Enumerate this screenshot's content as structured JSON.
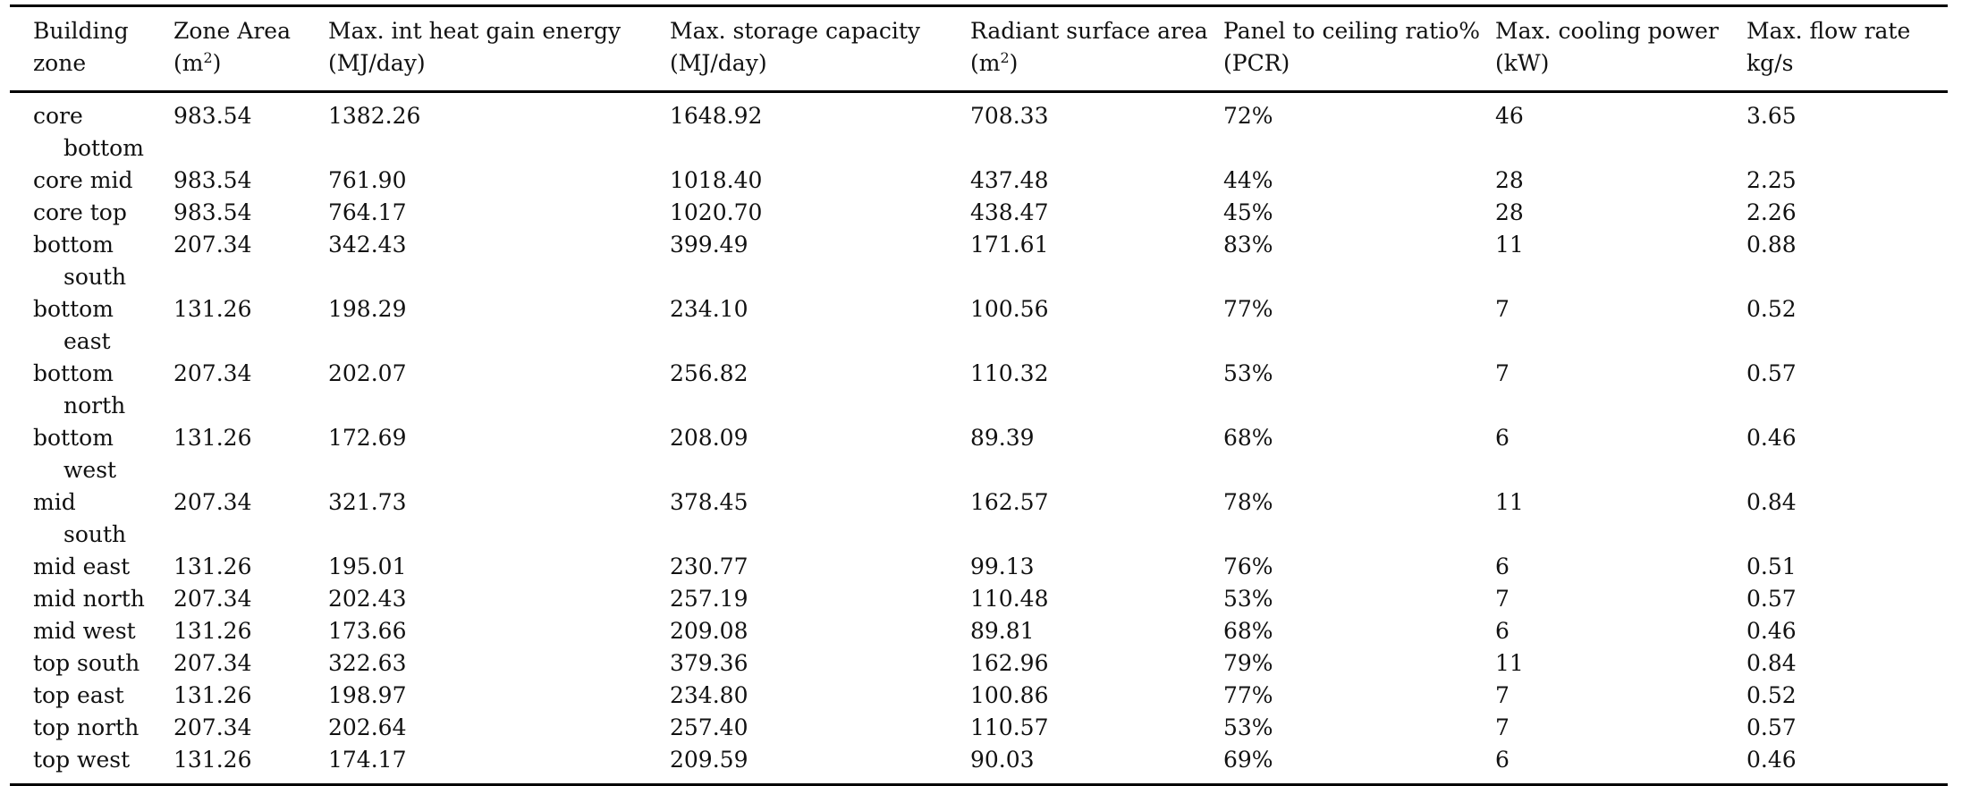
{
  "table": {
    "columns": [
      {
        "line1": "Building",
        "line2": "zone",
        "unit_sup": ""
      },
      {
        "line1": "Zone Area",
        "line2": "(m",
        "unit_sup": "2",
        "line2_end": ")"
      },
      {
        "line1": "Max. int heat gain energy",
        "line2": "(MJ/day)",
        "unit_sup": ""
      },
      {
        "line1": "Max. storage capacity",
        "line2": "(MJ/day)",
        "unit_sup": ""
      },
      {
        "line1": "Radiant surface area",
        "line2": "(m",
        "unit_sup": "2",
        "line2_end": ")"
      },
      {
        "line1": "Panel to ceiling ratio%",
        "line2": "(PCR)",
        "unit_sup": ""
      },
      {
        "line1": "Max. cooling power",
        "line2": "(kW)",
        "unit_sup": ""
      },
      {
        "line1": "Max. flow rate",
        "line2": "kg/s",
        "unit_sup": ""
      }
    ],
    "rows": [
      {
        "zone": "core bottom",
        "area": "983.54",
        "heat_gain": "1382.26",
        "storage": "1648.92",
        "radiant": "708.33",
        "pcr": "72%",
        "cooling": "46",
        "flow": "3.65"
      },
      {
        "zone": "core mid",
        "area": "983.54",
        "heat_gain": "761.90",
        "storage": "1018.40",
        "radiant": "437.48",
        "pcr": "44%",
        "cooling": "28",
        "flow": "2.25"
      },
      {
        "zone": "core top",
        "area": "983.54",
        "heat_gain": "764.17",
        "storage": "1020.70",
        "radiant": "438.47",
        "pcr": "45%",
        "cooling": "28",
        "flow": "2.26"
      },
      {
        "zone": "bottom south",
        "area": "207.34",
        "heat_gain": "342.43",
        "storage": "399.49",
        "radiant": "171.61",
        "pcr": "83%",
        "cooling": "11",
        "flow": "0.88"
      },
      {
        "zone": "bottom east",
        "area": "131.26",
        "heat_gain": "198.29",
        "storage": "234.10",
        "radiant": "100.56",
        "pcr": "77%",
        "cooling": "7",
        "flow": "0.52"
      },
      {
        "zone": "bottom north",
        "area": "207.34",
        "heat_gain": "202.07",
        "storage": "256.82",
        "radiant": "110.32",
        "pcr": "53%",
        "cooling": "7",
        "flow": "0.57"
      },
      {
        "zone": "bottom west",
        "area": "131.26",
        "heat_gain": "172.69",
        "storage": "208.09",
        "radiant": "89.39",
        "pcr": "68%",
        "cooling": "6",
        "flow": "0.46"
      },
      {
        "zone": "mid south",
        "area": "207.34",
        "heat_gain": "321.73",
        "storage": "378.45",
        "radiant": "162.57",
        "pcr": "78%",
        "cooling": "11",
        "flow": "0.84"
      },
      {
        "zone": "mid east",
        "area": "131.26",
        "heat_gain": "195.01",
        "storage": "230.77",
        "radiant": "99.13",
        "pcr": "76%",
        "cooling": "6",
        "flow": "0.51"
      },
      {
        "zone": "mid north",
        "area": "207.34",
        "heat_gain": "202.43",
        "storage": "257.19",
        "radiant": "110.48",
        "pcr": "53%",
        "cooling": "7",
        "flow": "0.57"
      },
      {
        "zone": "mid west",
        "area": "131.26",
        "heat_gain": "173.66",
        "storage": "209.08",
        "radiant": "89.81",
        "pcr": "68%",
        "cooling": "6",
        "flow": "0.46"
      },
      {
        "zone": "top south",
        "area": "207.34",
        "heat_gain": "322.63",
        "storage": "379.36",
        "radiant": "162.96",
        "pcr": "79%",
        "cooling": "11",
        "flow": "0.84"
      },
      {
        "zone": "top east",
        "area": "131.26",
        "heat_gain": "198.97",
        "storage": "234.80",
        "radiant": "100.86",
        "pcr": "77%",
        "cooling": "7",
        "flow": "0.52"
      },
      {
        "zone": "top north",
        "area": "207.34",
        "heat_gain": "202.64",
        "storage": "257.40",
        "radiant": "110.57",
        "pcr": "53%",
        "cooling": "7",
        "flow": "0.57"
      },
      {
        "zone": "top west",
        "area": "131.26",
        "heat_gain": "174.17",
        "storage": "209.59",
        "radiant": "90.03",
        "pcr": "69%",
        "cooling": "6",
        "flow": "0.46"
      }
    ]
  }
}
